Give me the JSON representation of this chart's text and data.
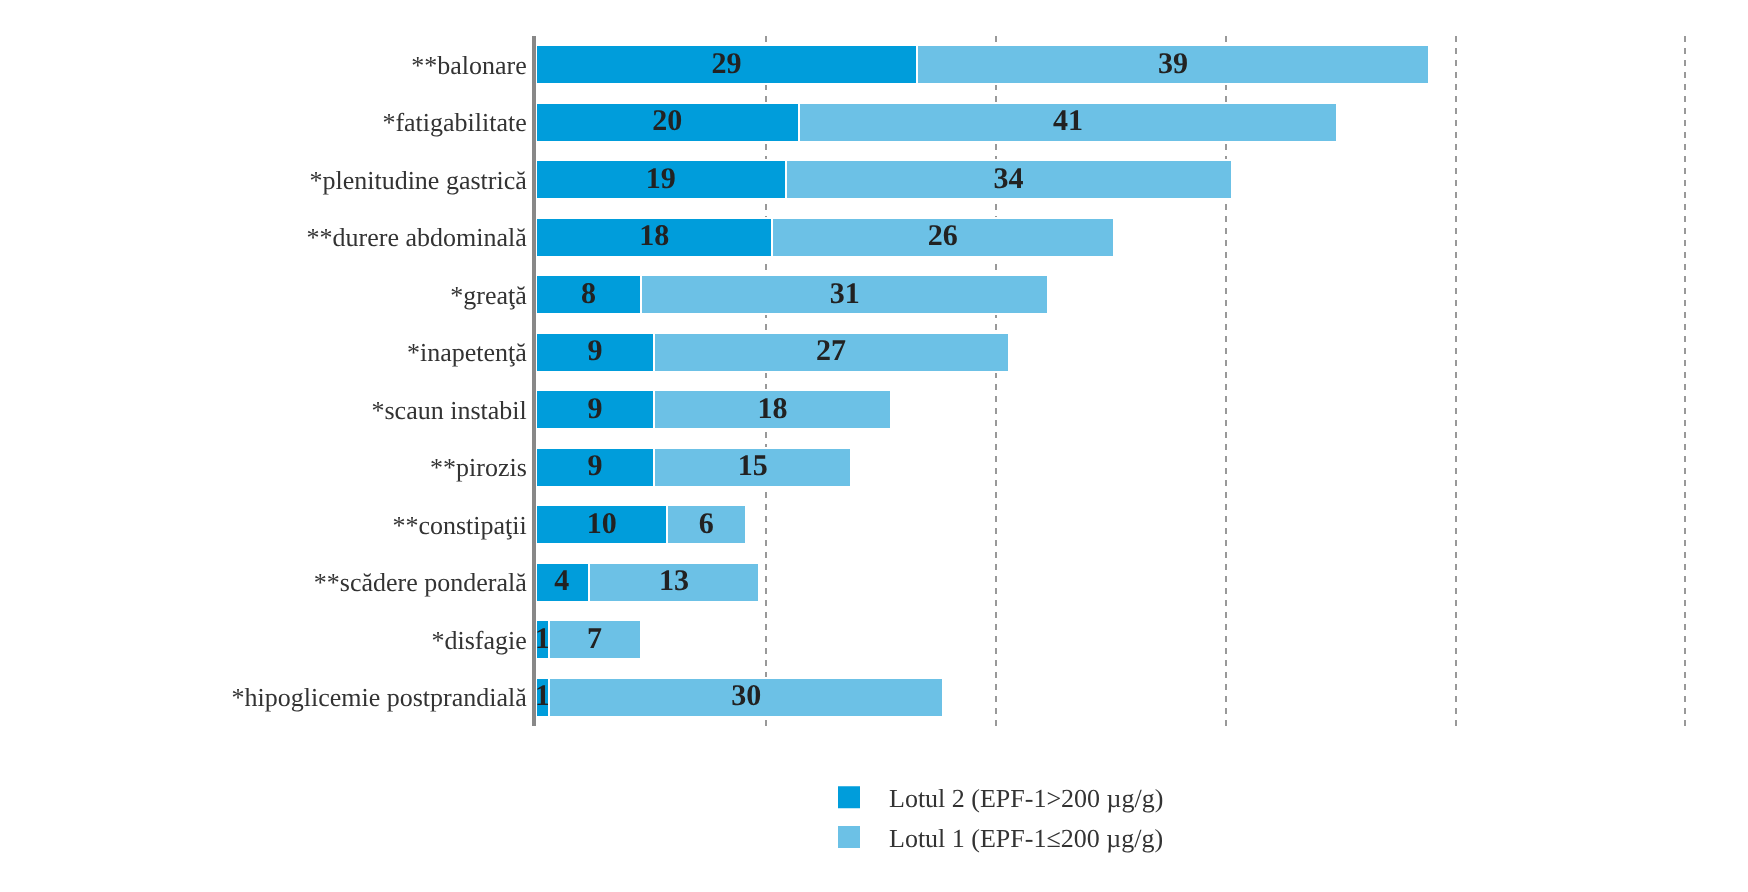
{
  "chart_data": {
    "type": "bar",
    "orientation": "horizontal",
    "stacked": true,
    "data_labels": true,
    "grid": "x",
    "legend": "bottom",
    "categories": [
      "**balonare",
      "*fatigabilitate",
      "*plenitudine gastrică",
      "**durere abdominală",
      "*greaţă",
      "*inapetenţă",
      "*scaun instabil",
      "**pirozis",
      "**constipaţii",
      "**scădere ponderală",
      "*disfagie",
      "*hipoglicemie postprandială"
    ],
    "series": [
      {
        "name": "Lotul 2 (EPF-1>200 µg/g)",
        "color": "#009ddb",
        "values": [
          29,
          20,
          19,
          18,
          8,
          9,
          9,
          9,
          10,
          4,
          1,
          1
        ]
      },
      {
        "name": "Lotul 1 (EPF-1≤200 µg/g)",
        "color": "#6cc1e6",
        "values": [
          39,
          41,
          34,
          26,
          31,
          27,
          18,
          15,
          6,
          13,
          7,
          30
        ]
      }
    ],
    "xlim": [
      0,
      88
    ],
    "xticks": [
      {
        "value": 17.5,
        "label": null
      },
      {
        "value": 35,
        "label": null
      },
      {
        "value": 52.5,
        "label": null
      },
      {
        "value": 70,
        "label": null
      },
      {
        "value": 87.5,
        "label": null
      }
    ]
  }
}
